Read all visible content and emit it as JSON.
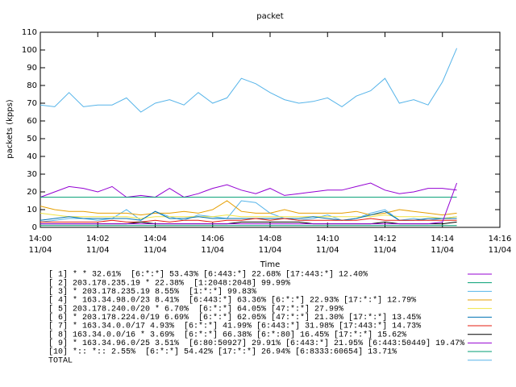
{
  "chart_data": {
    "type": "line",
    "title": "packet",
    "x_label": "Time",
    "y_label": "packets (kpps)",
    "x": [
      840,
      840.5,
      841,
      841.5,
      842,
      842.5,
      843,
      843.5,
      844,
      844.5,
      845,
      845.5,
      846,
      846.5,
      847,
      847.5,
      848,
      848.5,
      849,
      849.5,
      850,
      850.5,
      851,
      851.5,
      852,
      852.5,
      853,
      853.5,
      854,
      854.5
    ],
    "xlim": [
      840,
      856
    ],
    "xticks": [
      {
        "value": 840,
        "label": "14:00\n11/04"
      },
      {
        "value": 842,
        "label": "14:02\n11/04"
      },
      {
        "value": 844,
        "label": "14:04\n11/04"
      },
      {
        "value": 846,
        "label": "14:06\n11/04"
      },
      {
        "value": 848,
        "label": "14:08\n11/04"
      },
      {
        "value": 850,
        "label": "14:10\n11/04"
      },
      {
        "value": 852,
        "label": "14:12\n11/04"
      },
      {
        "value": 854,
        "label": "14:14\n11/04"
      },
      {
        "value": 856,
        "label": "14:16\n11/04"
      }
    ],
    "ylim": [
      0,
      110
    ],
    "yticks": [
      0,
      10,
      20,
      30,
      40,
      50,
      60,
      70,
      80,
      90,
      100,
      110
    ],
    "grid": false,
    "legend": "bottom",
    "series": [
      {
        "name": "[ 1] * * 32.61%  [6:*:*] 53.43% [6:443:*] 22.68% [17:443:*] 12.40%",
        "color": "#9400d3",
        "values": [
          17,
          20,
          23,
          22,
          20,
          23,
          17,
          18,
          17,
          22,
          17,
          19,
          22,
          24,
          21,
          19,
          22,
          18,
          19,
          20,
          21,
          21,
          23,
          25,
          21,
          19,
          20,
          22,
          22,
          21
        ]
      },
      {
        "name": "[ 2] 203.178.235.19 * 22.38%  [1:2048:2048] 99.99%",
        "color": "#009e73",
        "values": [
          17,
          17,
          17,
          17,
          17,
          17,
          17,
          17,
          17,
          17,
          17,
          17,
          17,
          17,
          17,
          17,
          17,
          17,
          17,
          17,
          17,
          17,
          17,
          17,
          17,
          17,
          17,
          17,
          17,
          17
        ]
      },
      {
        "name": "[ 3] * 203.178.235.19 8.55%  [1:*:*] 99.83%",
        "color": "#56b4e9",
        "values": [
          3,
          4,
          5,
          5,
          4,
          5,
          10,
          4,
          9,
          6,
          4,
          7,
          6,
          5,
          15,
          14,
          8,
          5,
          4,
          5,
          7,
          4,
          5,
          8,
          10,
          4,
          5,
          4,
          5,
          6
        ]
      },
      {
        "name": "[ 4] * 163.34.98.0/23 8.41%  [6:443:*] 63.36% [6:*:*] 22.93% [17:*:*] 12.79%",
        "color": "#e69f00",
        "values": [
          12,
          10,
          9,
          9,
          8,
          8,
          8,
          7,
          8,
          8,
          9,
          8,
          10,
          15,
          9,
          8,
          8,
          10,
          8,
          8,
          8,
          8,
          9,
          7,
          8,
          10,
          9,
          8,
          7,
          8
        ]
      },
      {
        "name": "[ 5] 203.178.240.0/20 * 6.70%  [6:*:*] 64.05% [47:*:*] 27.99%",
        "color": "#f0e442",
        "values": [
          8,
          7,
          6,
          6,
          6,
          6,
          6,
          5,
          6,
          6,
          6,
          6,
          6,
          7,
          6,
          6,
          6,
          6,
          6,
          6,
          6,
          6,
          6,
          6,
          7,
          6,
          6,
          6,
          5,
          6
        ]
      },
      {
        "name": "[ 6] * 203.178.224.0/19 6.69%  [6:*:*] 62.05% [47:*:*] 21.30% [17:*:*] 13.45%",
        "color": "#0072b2",
        "values": [
          4,
          5,
          6,
          5,
          5,
          5,
          5,
          4,
          9,
          5,
          5,
          6,
          5,
          5,
          5,
          5,
          5,
          5,
          5,
          6,
          5,
          4,
          5,
          7,
          9,
          4,
          4,
          5,
          5,
          5
        ]
      },
      {
        "name": "[ 7] * 163.34.0.0/17 4.93%  [6:*:*] 41.99% [6:443:*] 31.98% [17:443:*] 14.73%",
        "color": "#e51e10",
        "values": [
          3,
          3,
          3,
          3,
          3,
          4,
          3,
          3,
          4,
          3,
          4,
          4,
          3,
          4,
          4,
          5,
          4,
          5,
          4,
          4,
          4,
          4,
          4,
          5,
          4,
          4,
          4,
          4,
          4,
          4
        ]
      },
      {
        "name": "[ 8] 163.34.0.0/16 * 3.69%  [6:*:*] 66.38% [6:*:80] 16.45% [17:*:*] 15.62%",
        "color": "#000000",
        "values": [
          2,
          2,
          2,
          2,
          2,
          2,
          2,
          3,
          2,
          2,
          2,
          2,
          2,
          2,
          3,
          3,
          3,
          3,
          3,
          2,
          2,
          2,
          2,
          2,
          3,
          2,
          2,
          2,
          2,
          3
        ]
      },
      {
        "name": "[ 9] * 163.34.96.0/25 3.51%  [6:80:50927] 29.91% [6:443:*] 21.95% [6:443:50449] 19.47%",
        "color": "#9400d3",
        "values": [
          2,
          2,
          2,
          2,
          2,
          2,
          2,
          2,
          2,
          2,
          2,
          2,
          2,
          2,
          2,
          2,
          2,
          2,
          2,
          2,
          2,
          2,
          2,
          2,
          2,
          2,
          2,
          2,
          3,
          25
        ]
      },
      {
        "name": "[10] *:: *:: 2.55%  [6:*:*] 54.42% [17:*:*] 26.94% [6:8333:60654] 13.71%",
        "color": "#009e73",
        "values": [
          1,
          1,
          1,
          1,
          1,
          1,
          1,
          1,
          1,
          1,
          1,
          1,
          1,
          1,
          1,
          1,
          1,
          1,
          1,
          1,
          1,
          1,
          1,
          1,
          1,
          1,
          1,
          1,
          1,
          1
        ]
      },
      {
        "name": "TOTAL",
        "color": "#56b4e9",
        "values": [
          69,
          68,
          76,
          68,
          69,
          69,
          73,
          65,
          70,
          72,
          69,
          76,
          70,
          73,
          84,
          81,
          76,
          72,
          70,
          71,
          73,
          68,
          74,
          77,
          84,
          70,
          72,
          69,
          82,
          101
        ]
      }
    ]
  }
}
